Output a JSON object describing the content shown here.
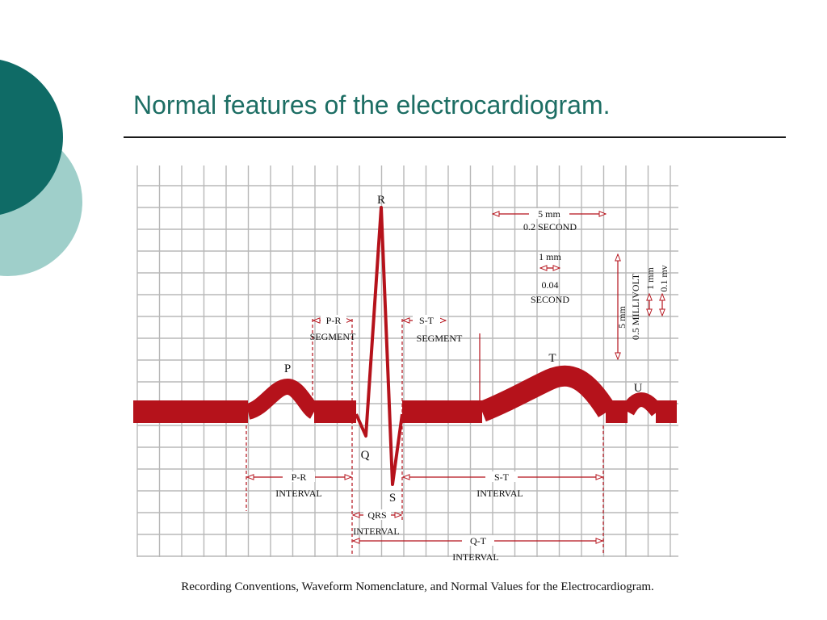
{
  "slide": {
    "title": "Normal features of the electrocardiogram.",
    "caption": "Recording Conventions, Waveform Nomenclature, and Normal Values for the Electrocardiogram."
  },
  "colors": {
    "accent_dark": "#0f6b66",
    "accent_light": "#9fcfca",
    "ecg_trace": "#b5121b",
    "grid": "#b8b8b8",
    "title_text": "#1d6e64"
  },
  "diagram": {
    "waves": {
      "p": "P",
      "q": "Q",
      "r": "R",
      "s": "S",
      "t": "T",
      "u": "U"
    },
    "pr_segment": [
      "P-R",
      "SEGMENT"
    ],
    "st_segment": [
      "S-T",
      "SEGMENT"
    ],
    "pr_interval": [
      "P-R",
      "INTERVAL"
    ],
    "st_interval": [
      "S-T",
      "INTERVAL"
    ],
    "qrs_interval": [
      "QRS",
      "INTERVAL"
    ],
    "qt_interval": [
      "Q-T",
      "INTERVAL"
    ],
    "large_box": [
      "5 mm",
      "0.2 SECOND"
    ],
    "small_box": [
      "1 mm",
      "0.04",
      "SECOND"
    ],
    "amplitude_large": [
      "5 mm",
      "0.5 MILLIVOLT"
    ],
    "amplitude_small": [
      "1 mm",
      "0.1 mv"
    ]
  }
}
